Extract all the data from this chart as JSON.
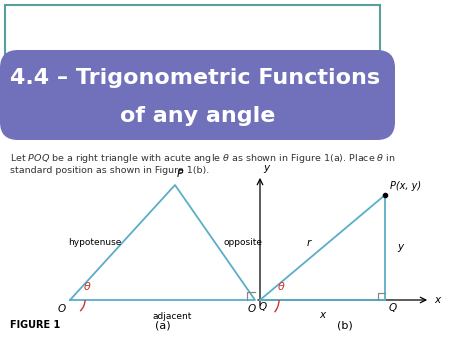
{
  "title_line1": "4.4 – Trigonometric Functions",
  "title_line2": "of any angle",
  "title_bg_color": "#7070BB",
  "title_text_color": "#FFFFFF",
  "body_bg_color": "#FFFFFF",
  "outer_bg_color": "#E8E8E8",
  "teal_rect_color": "#5A9E9A",
  "body_text_color": "#333333",
  "fig_a": {
    "O": [
      0.12,
      0.18
    ],
    "P": [
      0.42,
      0.82
    ],
    "Q": [
      0.72,
      0.18
    ],
    "line_color": "#5AAEC8",
    "label_O": "O",
    "label_P": "P",
    "label_Q": "Q",
    "label_hyp": "hypotenuse",
    "label_opp": "opposite",
    "label_adj": "adjacent",
    "label_theta": "θ",
    "caption": "(a)"
  },
  "fig_b": {
    "O": [
      0.08,
      0.22
    ],
    "P": [
      0.72,
      0.82
    ],
    "Q": [
      0.72,
      0.22
    ],
    "line_color": "#5AAEC8",
    "label_O": "O",
    "label_P": "P(x, y)",
    "label_Q": "Q",
    "label_r": "r",
    "label_x": "x",
    "label_y": "y",
    "label_theta": "θ",
    "axis_label_x": "x",
    "axis_label_y": "y",
    "caption": "(b)"
  },
  "figure_label": "FIGURE 1"
}
